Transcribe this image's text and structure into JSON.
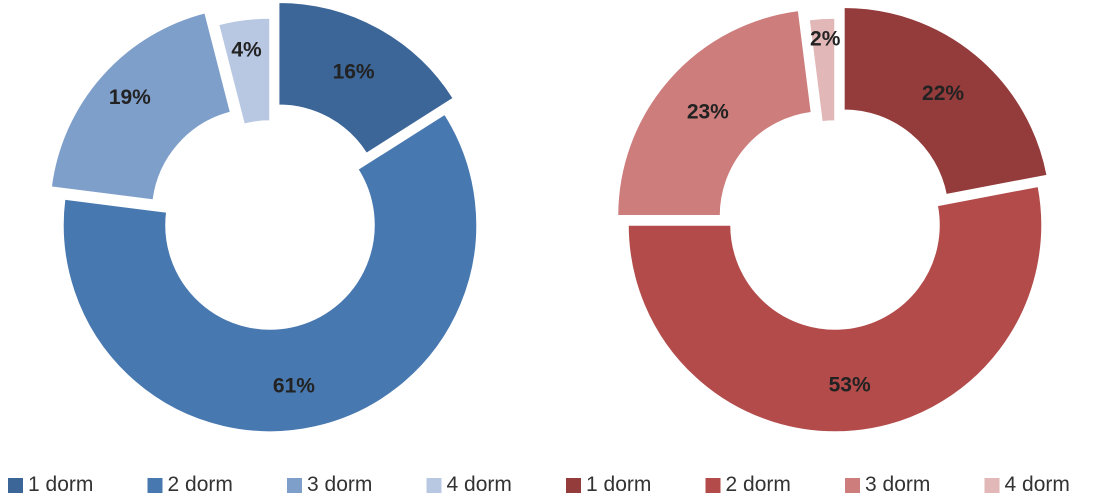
{
  "chart_data": [
    {
      "type": "pie",
      "variant": "donut",
      "categories": [
        "1 dorm",
        "2 dorm",
        "3 dorm",
        "4 dorm"
      ],
      "values": [
        16,
        61,
        19,
        4
      ],
      "labels": [
        "16%",
        "61%",
        "19%",
        "4%"
      ],
      "colors": [
        "#3b6697",
        "#4878b0",
        "#7f9fcb",
        "#b8c8e2"
      ],
      "exploded": [
        "1 dorm",
        "3 dorm"
      ]
    },
    {
      "type": "pie",
      "variant": "donut",
      "categories": [
        "1 dorm",
        "2 dorm",
        "3 dorm",
        "4 dorm"
      ],
      "values": [
        22,
        53,
        23,
        2
      ],
      "labels": [
        "22%",
        "53%",
        "23%",
        "2%"
      ],
      "colors": [
        "#943b3b",
        "#b24b4a",
        "#cd7d7c",
        "#e2b7b7"
      ],
      "exploded": [
        "1 dorm",
        "3 dorm"
      ]
    }
  ],
  "legend": {
    "position": "bottom",
    "items": [
      {
        "label": "1 dorm",
        "color": "#3b6697"
      },
      {
        "label": "2 dorm",
        "color": "#4878b0"
      },
      {
        "label": "3 dorm",
        "color": "#7f9fcb"
      },
      {
        "label": "4 dorm",
        "color": "#b8c8e2"
      },
      {
        "label": "1 dorm",
        "color": "#943b3b"
      },
      {
        "label": "2 dorm",
        "color": "#b24b4a"
      },
      {
        "label": "3 dorm",
        "color": "#cd7d7c"
      },
      {
        "label": "4 dorm",
        "color": "#e2b7b7"
      }
    ]
  }
}
